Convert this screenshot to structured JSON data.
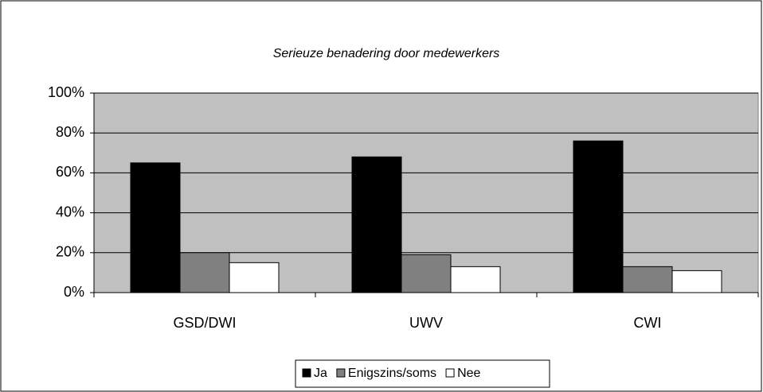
{
  "chart_data": {
    "type": "bar",
    "title": "Serieuze benadering door medewerkers",
    "categories": [
      "GSD/DWI",
      "UWV",
      "CWI"
    ],
    "series": [
      {
        "name": "Ja",
        "color": "#000000",
        "values": [
          65,
          68,
          76
        ]
      },
      {
        "name": "Enigszins/soms",
        "color": "#808080",
        "values": [
          20,
          19,
          13
        ]
      },
      {
        "name": "Nee",
        "color": "#ffffff",
        "values": [
          15,
          13,
          11
        ]
      }
    ],
    "ylim": [
      0,
      100
    ],
    "yticks": [
      {
        "value": 0,
        "label": "0%"
      },
      {
        "value": 20,
        "label": "20%"
      },
      {
        "value": 40,
        "label": "40%"
      },
      {
        "value": 60,
        "label": "60%"
      },
      {
        "value": 80,
        "label": "80%"
      },
      {
        "value": 100,
        "label": "100%"
      }
    ],
    "grid": true,
    "legend": "bottom"
  }
}
